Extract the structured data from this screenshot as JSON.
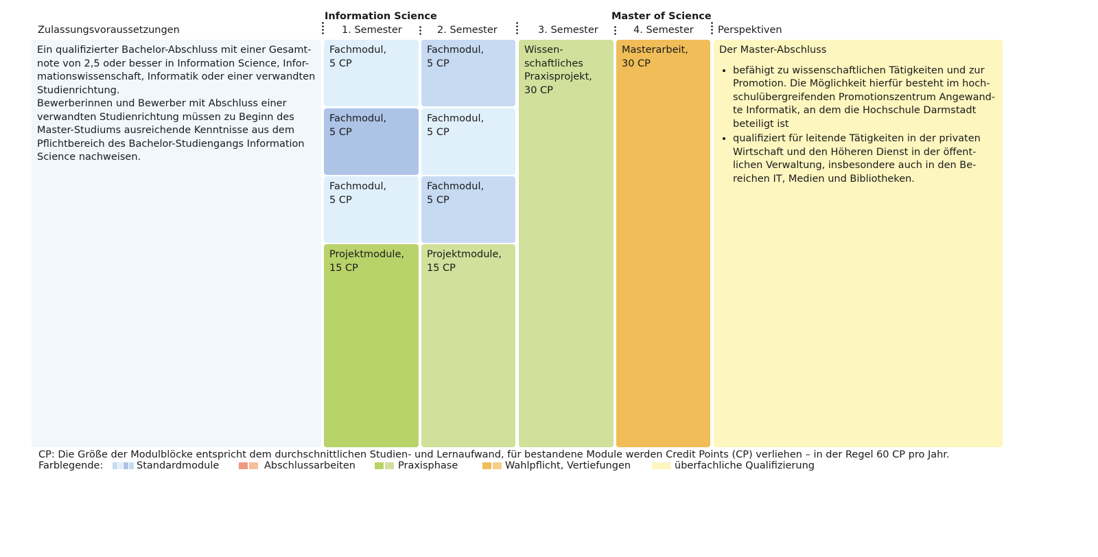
{
  "headers": {
    "program_name": "Information Science",
    "degree": "Master of Science",
    "admission": "Zulassungsvoraussetzungen",
    "semester1": "1. Semester",
    "semester2": "2. Semester",
    "semester3": "3. Semester",
    "semester4": "4. Semester",
    "perspectives": "Perspektiven"
  },
  "admission_text": "Ein qualifizierter Bachelor-Abschluss mit einer Gesamt-\nnote von 2,5 oder besser in Information Science, Infor-\nmationswissenschaft, Informatik oder einer verwandten\nStudienrichtung.\nBewerberinnen und Bewerber mit Abschluss einer\nverwandten Studienrichtung müssen zu Beginn des\nMaster-Studiums ausreichende Kenntnisse aus dem\nPflichtbereich des Bachelor-Studiengangs Information\nScience nachweisen.",
  "modules": {
    "s1_m1": "Fachmodul,\n5 CP",
    "s1_m2": "Fachmodul,\n5 CP",
    "s1_m3": "Fachmodul,\n5 CP",
    "s1_project": "Projektmodule,\n15 CP",
    "s2_m1": "Fachmodul,\n5 CP",
    "s2_m2": "Fachmodul,\n5 CP",
    "s2_m3": "Fachmodul,\n5 CP",
    "s2_project": "Projektmodule,\n15 CP",
    "s3_practice": "Wissen-\nschaftliches\nPraxisprojekt,\n30 CP",
    "s4_thesis": "Masterarbeit,\n30 CP"
  },
  "perspectives": {
    "title": "Der Master-Abschluss",
    "items": [
      "befähigt zu wissenschaftlichen Tätigkeiten und zur\nPromotion. Die Möglichkeit hierfür besteht im hoch-\nschulübergreifenden Promotionszentrum Angewand-\nte Informatik, an dem die Hochschule Darmstadt\nbeteiligt ist",
      "qualifiziert für leitende Tätigkeiten in der privaten\nWirtschaft und den Höheren Dienst in der öffent-\nlichen Verwaltung, insbesondere auch in den Be-\nreichen IT, Medien und Bibliotheken."
    ]
  },
  "footnote": "CP: Die Größe der Modulblöcke entspricht dem durchschnittlichen Studien- und Lernaufwand, für bestandene Module werden Credit Points (CP) verliehen – in der Regel 60 CP pro Jahr.",
  "legend": {
    "label": "Farblegende:",
    "items": [
      {
        "label": "Standardmodule",
        "colors": [
          "#c6daf2",
          "#e0eefb",
          "#adc4e7",
          "#c6daf2"
        ]
      },
      {
        "label": "Abschlussarbeiten",
        "colors": [
          "#ee9a82",
          "#f6be9a"
        ]
      },
      {
        "label": "Praxisphase",
        "colors": [
          "#b9d36b",
          "#d1e09b"
        ]
      },
      {
        "label": "Wahlpflicht, Vertiefungen",
        "colors": [
          "#f0bd58",
          "#f5cf85"
        ]
      },
      {
        "label": "überfachliche Qualifizierung",
        "colors": [
          "#fdf6bf"
        ]
      }
    ]
  },
  "colors": {
    "admission_bg": "#f0f7fd",
    "light_blue": "#e0f0fb",
    "mid_blue": "#c6daf2",
    "dark_blue": "#adc4e7",
    "green_dark": "#b9d36b",
    "green_light": "#d1e09b",
    "orange": "#f0bd58",
    "yellow": "#fdf6bf"
  }
}
